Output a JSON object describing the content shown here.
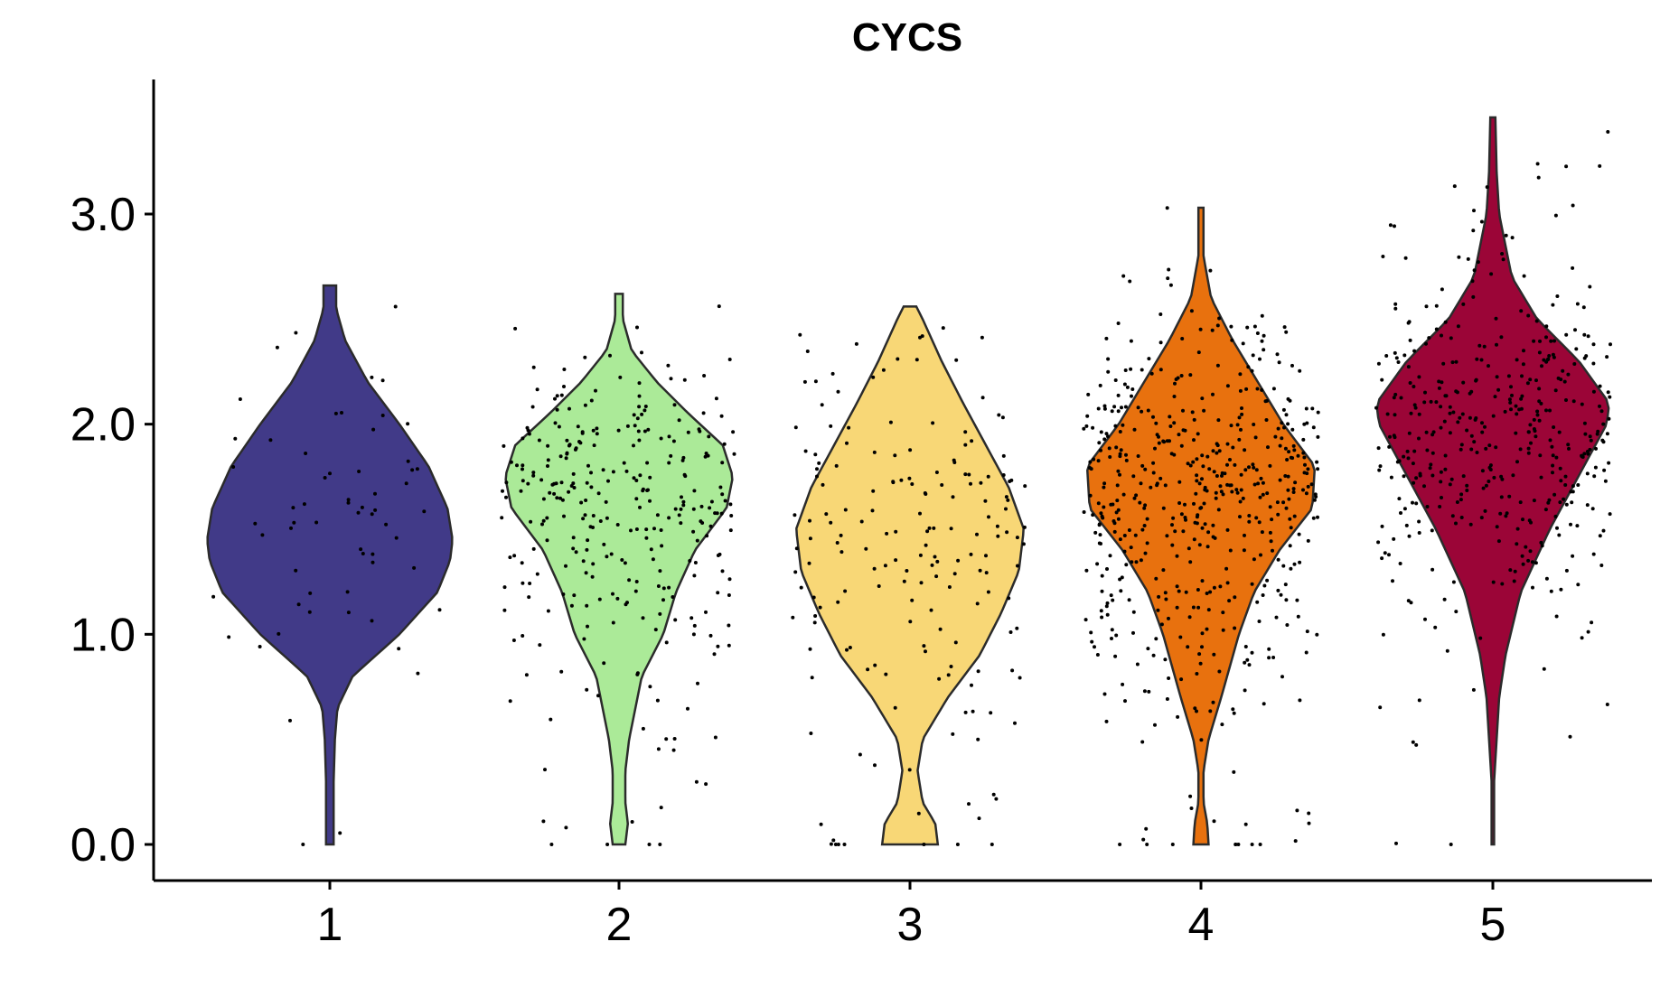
{
  "chart_data": {
    "type": "violin",
    "title": "CYCS",
    "xlabel": "",
    "ylabel": "",
    "ylim": [
      -0.17,
      3.62
    ],
    "yticks": [
      0.0,
      1.0,
      2.0,
      3.0
    ],
    "ytick_labels": [
      "0.0",
      "1.0",
      "2.0",
      "3.0"
    ],
    "categories": [
      "1",
      "2",
      "3",
      "4",
      "5"
    ],
    "grid": false,
    "legend": "none",
    "series": [
      {
        "category": "1",
        "color": "#413A88",
        "max": 2.66,
        "density": [
          [
            0.0,
            0.03
          ],
          [
            0.3,
            0.03
          ],
          [
            0.5,
            0.04
          ],
          [
            0.65,
            0.06
          ],
          [
            0.8,
            0.18
          ],
          [
            1.0,
            0.55
          ],
          [
            1.2,
            0.85
          ],
          [
            1.35,
            0.95
          ],
          [
            1.45,
            0.97
          ],
          [
            1.6,
            0.93
          ],
          [
            1.8,
            0.78
          ],
          [
            2.0,
            0.55
          ],
          [
            2.2,
            0.3
          ],
          [
            2.4,
            0.12
          ],
          [
            2.55,
            0.05
          ],
          [
            2.66,
            0.05
          ]
        ]
      },
      {
        "category": "2",
        "color": "#ABEA98",
        "max": 2.62,
        "density": [
          [
            0.0,
            0.05
          ],
          [
            0.1,
            0.07
          ],
          [
            0.2,
            0.05
          ],
          [
            0.35,
            0.05
          ],
          [
            0.5,
            0.08
          ],
          [
            0.8,
            0.18
          ],
          [
            1.0,
            0.35
          ],
          [
            1.2,
            0.45
          ],
          [
            1.4,
            0.6
          ],
          [
            1.6,
            0.85
          ],
          [
            1.75,
            0.9
          ],
          [
            1.9,
            0.82
          ],
          [
            2.05,
            0.55
          ],
          [
            2.2,
            0.3
          ],
          [
            2.35,
            0.1
          ],
          [
            2.5,
            0.03
          ],
          [
            2.62,
            0.03
          ]
        ]
      },
      {
        "category": "3",
        "color": "#F8D776",
        "max": 2.56,
        "density": [
          [
            0.0,
            0.22
          ],
          [
            0.1,
            0.2
          ],
          [
            0.2,
            0.1
          ],
          [
            0.35,
            0.06
          ],
          [
            0.5,
            0.1
          ],
          [
            0.7,
            0.3
          ],
          [
            0.9,
            0.55
          ],
          [
            1.1,
            0.72
          ],
          [
            1.3,
            0.86
          ],
          [
            1.5,
            0.9
          ],
          [
            1.7,
            0.78
          ],
          [
            1.9,
            0.6
          ],
          [
            2.1,
            0.42
          ],
          [
            2.3,
            0.25
          ],
          [
            2.5,
            0.1
          ],
          [
            2.56,
            0.05
          ]
        ]
      },
      {
        "category": "4",
        "color": "#E8710E",
        "max": 3.03,
        "density": [
          [
            0.0,
            0.06
          ],
          [
            0.1,
            0.05
          ],
          [
            0.2,
            0.02
          ],
          [
            0.35,
            0.02
          ],
          [
            0.5,
            0.06
          ],
          [
            0.7,
            0.16
          ],
          [
            1.0,
            0.3
          ],
          [
            1.2,
            0.42
          ],
          [
            1.4,
            0.62
          ],
          [
            1.6,
            0.88
          ],
          [
            1.8,
            0.9
          ],
          [
            2.0,
            0.65
          ],
          [
            2.2,
            0.45
          ],
          [
            2.4,
            0.25
          ],
          [
            2.6,
            0.08
          ],
          [
            2.8,
            0.02
          ],
          [
            3.03,
            0.02
          ]
        ]
      },
      {
        "category": "5",
        "color": "#9B0537",
        "max": 3.46,
        "density": [
          [
            0.0,
            0.01
          ],
          [
            0.3,
            0.01
          ],
          [
            0.5,
            0.03
          ],
          [
            0.7,
            0.05
          ],
          [
            0.9,
            0.1
          ],
          [
            1.2,
            0.22
          ],
          [
            1.5,
            0.45
          ],
          [
            1.8,
            0.72
          ],
          [
            2.0,
            0.9
          ],
          [
            2.1,
            0.92
          ],
          [
            2.3,
            0.68
          ],
          [
            2.5,
            0.35
          ],
          [
            2.7,
            0.15
          ],
          [
            3.0,
            0.05
          ],
          [
            3.2,
            0.03
          ],
          [
            3.46,
            0.02
          ]
        ]
      }
    ]
  }
}
